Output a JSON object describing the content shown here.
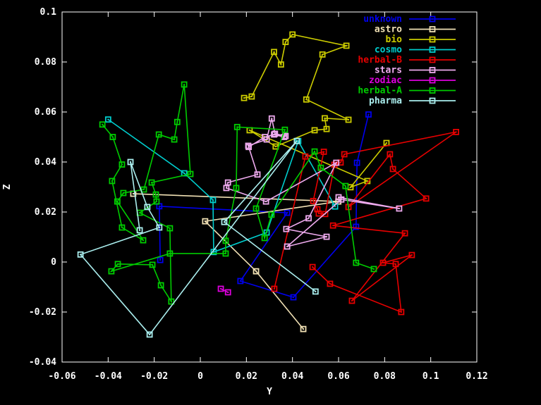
{
  "figure": {
    "background": "#000000",
    "axis_color": "#ffffff",
    "tick_label_color": "#ffffff"
  },
  "chart_data": {
    "type": "scatter",
    "title": "",
    "xlabel": "Y",
    "ylabel": "Z",
    "xlim": [
      -0.06,
      0.12
    ],
    "ylim": [
      -0.04,
      0.1
    ],
    "grid": false,
    "legend_position": "top-right-inside",
    "marker": "open-square",
    "line_style": "linespoints",
    "xticks": [
      {
        "v": -0.06,
        "label": "-0.06"
      },
      {
        "v": -0.04,
        "label": "-0.04"
      },
      {
        "v": -0.02,
        "label": "-0.02"
      },
      {
        "v": 0,
        "label": "0"
      },
      {
        "v": 0.02,
        "label": "0.02"
      },
      {
        "v": 0.04,
        "label": "0.04"
      },
      {
        "v": 0.06,
        "label": "0.06"
      },
      {
        "v": 0.08,
        "label": "0.08"
      },
      {
        "v": 0.1,
        "label": "0.1"
      },
      {
        "v": 0.12,
        "label": "0.12"
      }
    ],
    "yticks": [
      {
        "v": -0.04,
        "label": "-0.04"
      },
      {
        "v": -0.02,
        "label": "-0.02"
      },
      {
        "v": 0,
        "label": "0"
      },
      {
        "v": 0.02,
        "label": "0.02"
      },
      {
        "v": 0.04,
        "label": "0.04"
      },
      {
        "v": 0.06,
        "label": "0.06"
      },
      {
        "v": 0.08,
        "label": "0.08"
      },
      {
        "v": 0.1,
        "label": "0.1"
      }
    ],
    "series": [
      {
        "name": "unknown",
        "color": "#0000ee",
        "points": [
          [
            -0.0174,
            0.0008
          ],
          [
            -0.0178,
            0.0223
          ],
          [
            0.0377,
            0.0197
          ],
          [
            0.0174,
            -0.0076
          ],
          [
            0.0404,
            -0.0141
          ],
          [
            0.0676,
            0.0141
          ],
          [
            0.068,
            0.0397
          ],
          [
            0.073,
            0.059
          ]
        ]
      },
      {
        "name": "astro",
        "color": "#f0e0b4",
        "points": [
          [
            -0.0291,
            0.0273
          ],
          [
            0.0599,
            0.0242
          ],
          [
            0.0021,
            0.0163
          ],
          [
            0.0242,
            -0.0037
          ],
          [
            0.0447,
            -0.0268
          ]
        ]
      },
      {
        "name": "bio",
        "color": "#cccc00",
        "points": [
          [
            0.019,
            0.0656
          ],
          [
            0.0223,
            0.0662
          ],
          [
            0.032,
            0.084
          ],
          [
            0.035,
            0.079
          ],
          [
            0.037,
            0.088
          ],
          [
            0.04,
            0.091
          ],
          [
            0.0634,
            0.0865
          ],
          [
            0.053,
            0.083
          ],
          [
            0.046,
            0.065
          ],
          [
            0.0643,
            0.0569
          ],
          [
            0.054,
            0.0575
          ],
          [
            0.0548,
            0.0532
          ],
          [
            0.0496,
            0.0527
          ],
          [
            0.0327,
            0.0462
          ],
          [
            0.0214,
            0.0527
          ],
          [
            0.0725,
            0.0324
          ],
          [
            0.0652,
            0.0299
          ],
          [
            0.0808,
            0.0476
          ]
        ]
      },
      {
        "name": "cosmo",
        "color": "#00cccc",
        "points": [
          [
            -0.04,
            0.057
          ],
          [
            -0.007,
            0.0355
          ],
          [
            0.0055,
            0.0248
          ],
          [
            0.0058,
            0.004
          ],
          [
            0.0288,
            0.0118
          ],
          [
            0.0425,
            0.0484
          ],
          [
            0.0585,
            0.0222
          ]
        ]
      },
      {
        "name": "herbal-B",
        "color": "#e60000",
        "points": [
          [
            0.0321,
            -0.0107
          ],
          [
            0.0456,
            0.0422
          ],
          [
            0.0536,
            0.0441
          ],
          [
            0.049,
            0.0244
          ],
          [
            0.0508,
            0.0211
          ],
          [
            0.0514,
            0.0194
          ],
          [
            0.0542,
            0.0192
          ],
          [
            0.0582,
            0.0389
          ],
          [
            0.0609,
            0.0398
          ],
          [
            0.0625,
            0.0431
          ],
          [
            0.111,
            0.052
          ],
          [
            0.0643,
            0.022
          ],
          [
            0.0823,
            0.0431
          ],
          [
            0.0836,
            0.0372
          ],
          [
            0.098,
            0.0254
          ],
          [
            0.0576,
            0.0146
          ],
          [
            0.0888,
            0.0115
          ],
          [
            0.0658,
            -0.0155
          ],
          [
            0.0918,
            0.0028
          ],
          [
            0.0793,
            -0.0003
          ],
          [
            0.0848,
            -0.0008
          ],
          [
            0.0872,
            -0.02
          ],
          [
            0.0563,
            -0.0087
          ],
          [
            0.0487,
            -0.002
          ]
        ]
      },
      {
        "name": "stars",
        "color": "#eeaaee",
        "points": [
          [
            0.0208,
            0.0465
          ],
          [
            0.0288,
            0.049
          ],
          [
            0.031,
            0.0574
          ],
          [
            0.0324,
            0.0513
          ],
          [
            0.037,
            0.0504
          ],
          [
            0.0364,
            0.05
          ],
          [
            0.032,
            0.051
          ],
          [
            0.028,
            0.05
          ],
          [
            0.021,
            0.046
          ],
          [
            0.0248,
            0.035
          ],
          [
            0.012,
            0.0318
          ],
          [
            0.0113,
            0.0296
          ],
          [
            0.0285,
            0.0242
          ],
          [
            0.059,
            0.0397
          ],
          [
            0.047,
            0.0175
          ],
          [
            0.0373,
            0.0132
          ],
          [
            0.0548,
            0.0101
          ],
          [
            0.0377,
            0.0062
          ],
          [
            0.0612,
            0.025
          ],
          [
            0.0863,
            0.0214
          ],
          [
            0.06,
            0.0259
          ]
        ]
      },
      {
        "name": "zodiac",
        "color": "#dd00dd",
        "points": [
          [
            0.0089,
            -0.0107
          ],
          [
            0.012,
            -0.0121
          ]
        ]
      },
      {
        "name": "herbal-A",
        "color": "#00cc00",
        "points": [
          [
            -0.0425,
            0.055
          ],
          [
            -0.038,
            0.05
          ],
          [
            -0.034,
            0.039
          ],
          [
            -0.0383,
            0.0324
          ],
          [
            -0.034,
            0.0138
          ],
          [
            -0.0248,
            0.0087
          ],
          [
            -0.036,
            0.0242
          ],
          [
            -0.0334,
            0.0276
          ],
          [
            -0.0245,
            0.029
          ],
          [
            -0.018,
            0.051
          ],
          [
            -0.0113,
            0.049
          ],
          [
            -0.01,
            0.056
          ],
          [
            -0.007,
            0.071
          ],
          [
            -0.0043,
            0.0352
          ],
          [
            -0.0211,
            0.0318
          ],
          [
            -0.0193,
            0.027
          ],
          [
            -0.019,
            0.0242
          ],
          [
            -0.0263,
            0.0197
          ],
          [
            -0.0132,
            0.0135
          ],
          [
            -0.0126,
            -0.0158
          ],
          [
            -0.0171,
            -0.0093
          ],
          [
            -0.0208,
            -0.0011
          ],
          [
            -0.0358,
            -0.0008
          ],
          [
            -0.0386,
            -0.0037
          ],
          [
            -0.0132,
            0.0034
          ],
          [
            0.011,
            0.0034
          ],
          [
            0.011,
            0.0085
          ],
          [
            0.0156,
            0.0296
          ],
          [
            0.016,
            0.054
          ],
          [
            0.0367,
            0.0529
          ],
          [
            0.0242,
            0.0214
          ],
          [
            0.0279,
            0.0096
          ],
          [
            0.0309,
            0.0189
          ],
          [
            0.0496,
            0.0442
          ],
          [
            0.0523,
            0.0377
          ],
          [
            0.063,
            0.0304
          ],
          [
            0.0676,
            -0.0003
          ],
          [
            0.0753,
            -0.0028
          ]
        ]
      },
      {
        "name": "pharma",
        "color": "#aaeeee",
        "points": [
          [
            -0.0263,
            0.0127
          ],
          [
            -0.0303,
            0.04
          ],
          [
            -0.023,
            0.022
          ],
          [
            -0.0178,
            0.0138
          ],
          [
            -0.052,
            0.003
          ],
          [
            -0.022,
            -0.029
          ],
          [
            0.0419,
            0.0484
          ],
          [
            0.0104,
            0.016
          ],
          [
            0.05,
            -0.0118
          ]
        ]
      }
    ]
  }
}
